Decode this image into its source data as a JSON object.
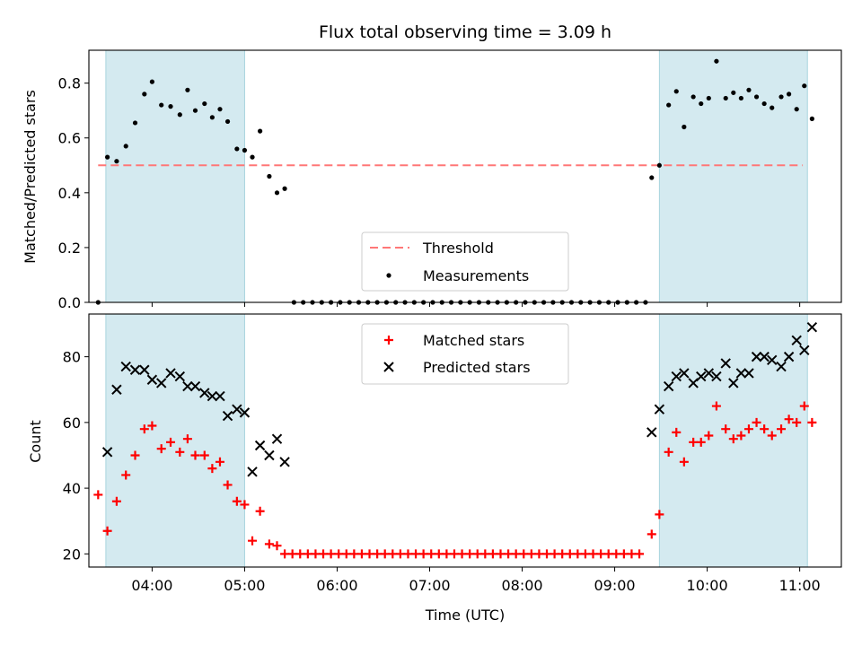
{
  "chart_data": [
    {
      "type": "scatter",
      "title": "Flux total observing time = 3.09 h",
      "ylabel": "Matched/Predicted stars",
      "xlabel": "",
      "xlim": [
        "03:19",
        "11:27"
      ],
      "ylim": [
        0,
        0.92
      ],
      "yticks": [
        "0.0",
        "0.2",
        "0.4",
        "0.6",
        "0.8"
      ],
      "grid": false,
      "legend_position": "lower-center",
      "shaded_intervals": [
        [
          "03:30",
          "05:00"
        ],
        [
          "09:29",
          "11:05"
        ]
      ],
      "shade_color": "#d4eaf0",
      "threshold": {
        "name": "Threshold",
        "value": 0.5,
        "x_range": [
          "03:25",
          "11:02"
        ],
        "color": "#ff7777"
      },
      "series": [
        {
          "name": "Measurements",
          "color": "#000000",
          "points": [
            [
              "03:25",
              0.0
            ],
            [
              "03:31",
              0.53
            ],
            [
              "03:37",
              0.515
            ],
            [
              "03:43",
              0.57
            ],
            [
              "03:49",
              0.655
            ],
            [
              "03:55",
              0.76
            ],
            [
              "04:00",
              0.805
            ],
            [
              "04:06",
              0.72
            ],
            [
              "04:12",
              0.715
            ],
            [
              "04:18",
              0.685
            ],
            [
              "04:23",
              0.775
            ],
            [
              "04:28",
              0.7
            ],
            [
              "04:34",
              0.725
            ],
            [
              "04:39",
              0.675
            ],
            [
              "04:44",
              0.705
            ],
            [
              "04:49",
              0.66
            ],
            [
              "04:55",
              0.56
            ],
            [
              "05:00",
              0.555
            ],
            [
              "05:05",
              0.53
            ],
            [
              "05:10",
              0.625
            ],
            [
              "05:16",
              0.46
            ],
            [
              "05:21",
              0.4
            ],
            [
              "05:26",
              0.415
            ],
            [
              "05:32",
              0.0
            ],
            [
              "05:38",
              0.0
            ],
            [
              "05:44",
              0.0
            ],
            [
              "05:50",
              0.0
            ],
            [
              "05:56",
              0.0
            ],
            [
              "06:02",
              0.0
            ],
            [
              "06:08",
              0.0
            ],
            [
              "06:14",
              0.0
            ],
            [
              "06:20",
              0.0
            ],
            [
              "06:26",
              0.0
            ],
            [
              "06:32",
              0.0
            ],
            [
              "06:38",
              0.0
            ],
            [
              "06:44",
              0.0
            ],
            [
              "06:50",
              0.0
            ],
            [
              "06:56",
              0.0
            ],
            [
              "07:02",
              0.0
            ],
            [
              "07:08",
              0.0
            ],
            [
              "07:14",
              0.0
            ],
            [
              "07:20",
              0.0
            ],
            [
              "07:26",
              0.0
            ],
            [
              "07:32",
              0.0
            ],
            [
              "07:38",
              0.0
            ],
            [
              "07:44",
              0.0
            ],
            [
              "07:50",
              0.0
            ],
            [
              "07:56",
              0.0
            ],
            [
              "08:02",
              0.0
            ],
            [
              "08:08",
              0.0
            ],
            [
              "08:14",
              0.0
            ],
            [
              "08:20",
              0.0
            ],
            [
              "08:26",
              0.0
            ],
            [
              "08:32",
              0.0
            ],
            [
              "08:38",
              0.0
            ],
            [
              "08:44",
              0.0
            ],
            [
              "08:50",
              0.0
            ],
            [
              "08:56",
              0.0
            ],
            [
              "09:02",
              0.0
            ],
            [
              "09:08",
              0.0
            ],
            [
              "09:14",
              0.0
            ],
            [
              "09:20",
              0.0
            ],
            [
              "09:24",
              0.455
            ],
            [
              "09:29",
              0.5
            ],
            [
              "09:35",
              0.72
            ],
            [
              "09:40",
              0.77
            ],
            [
              "09:45",
              0.64
            ],
            [
              "09:51",
              0.75
            ],
            [
              "09:56",
              0.725
            ],
            [
              "10:01",
              0.745
            ],
            [
              "10:06",
              0.88
            ],
            [
              "10:12",
              0.745
            ],
            [
              "10:17",
              0.765
            ],
            [
              "10:22",
              0.745
            ],
            [
              "10:27",
              0.775
            ],
            [
              "10:32",
              0.75
            ],
            [
              "10:37",
              0.725
            ],
            [
              "10:42",
              0.71
            ],
            [
              "10:48",
              0.75
            ],
            [
              "10:53",
              0.76
            ],
            [
              "10:58",
              0.705
            ],
            [
              "11:03",
              0.79
            ],
            [
              "11:08",
              0.67
            ]
          ]
        }
      ]
    },
    {
      "type": "scatter",
      "title": "",
      "ylabel": "Count",
      "xlabel": "Time (UTC)",
      "xlim": [
        "03:19",
        "11:27"
      ],
      "ylim": [
        16,
        93
      ],
      "yticks": [
        "20",
        "40",
        "60",
        "80"
      ],
      "xticks": [
        "04:00",
        "05:00",
        "06:00",
        "07:00",
        "08:00",
        "09:00",
        "10:00",
        "11:00"
      ],
      "grid": false,
      "legend_position": "upper-center",
      "shaded_intervals": [
        [
          "03:30",
          "05:00"
        ],
        [
          "09:29",
          "11:05"
        ]
      ],
      "shade_color": "#d4eaf0",
      "series": [
        {
          "name": "Matched stars",
          "marker": "plus",
          "color": "#ff0000",
          "points": [
            [
              "03:25",
              38
            ],
            [
              "03:31",
              27
            ],
            [
              "03:37",
              36
            ],
            [
              "03:43",
              44
            ],
            [
              "03:49",
              50
            ],
            [
              "03:55",
              58
            ],
            [
              "04:00",
              59
            ],
            [
              "04:06",
              52
            ],
            [
              "04:12",
              54
            ],
            [
              "04:18",
              51
            ],
            [
              "04:23",
              55
            ],
            [
              "04:28",
              50
            ],
            [
              "04:34",
              50
            ],
            [
              "04:39",
              46
            ],
            [
              "04:44",
              48
            ],
            [
              "04:49",
              41
            ],
            [
              "04:55",
              36
            ],
            [
              "05:00",
              35
            ],
            [
              "05:05",
              24
            ],
            [
              "05:10",
              33
            ],
            [
              "05:16",
              23
            ],
            [
              "05:21",
              22.5
            ],
            [
              "05:26",
              20
            ],
            [
              "05:31",
              20
            ],
            [
              "05:36",
              20
            ],
            [
              "05:41",
              20
            ],
            [
              "05:46",
              20
            ],
            [
              "05:51",
              20
            ],
            [
              "05:56",
              20
            ],
            [
              "06:01",
              20
            ],
            [
              "06:06",
              20
            ],
            [
              "06:11",
              20
            ],
            [
              "06:16",
              20
            ],
            [
              "06:21",
              20
            ],
            [
              "06:26",
              20
            ],
            [
              "06:31",
              20
            ],
            [
              "06:36",
              20
            ],
            [
              "06:41",
              20
            ],
            [
              "06:46",
              20
            ],
            [
              "06:51",
              20
            ],
            [
              "06:56",
              20
            ],
            [
              "07:01",
              20
            ],
            [
              "07:06",
              20
            ],
            [
              "07:11",
              20
            ],
            [
              "07:16",
              20
            ],
            [
              "07:21",
              20
            ],
            [
              "07:26",
              20
            ],
            [
              "07:31",
              20
            ],
            [
              "07:36",
              20
            ],
            [
              "07:41",
              20
            ],
            [
              "07:46",
              20
            ],
            [
              "07:51",
              20
            ],
            [
              "07:56",
              20
            ],
            [
              "08:01",
              20
            ],
            [
              "08:06",
              20
            ],
            [
              "08:11",
              20
            ],
            [
              "08:16",
              20
            ],
            [
              "08:21",
              20
            ],
            [
              "08:26",
              20
            ],
            [
              "08:31",
              20
            ],
            [
              "08:36",
              20
            ],
            [
              "08:41",
              20
            ],
            [
              "08:46",
              20
            ],
            [
              "08:51",
              20
            ],
            [
              "08:56",
              20
            ],
            [
              "09:01",
              20
            ],
            [
              "09:06",
              20
            ],
            [
              "09:11",
              20
            ],
            [
              "09:16",
              20
            ],
            [
              "09:24",
              26
            ],
            [
              "09:29",
              32
            ],
            [
              "09:35",
              51
            ],
            [
              "09:40",
              57
            ],
            [
              "09:45",
              48
            ],
            [
              "09:51",
              54
            ],
            [
              "09:56",
              54
            ],
            [
              "10:01",
              56
            ],
            [
              "10:06",
              65
            ],
            [
              "10:12",
              58
            ],
            [
              "10:17",
              55
            ],
            [
              "10:22",
              56
            ],
            [
              "10:27",
              58
            ],
            [
              "10:32",
              60
            ],
            [
              "10:37",
              58
            ],
            [
              "10:42",
              56
            ],
            [
              "10:48",
              58
            ],
            [
              "10:53",
              61
            ],
            [
              "10:58",
              60
            ],
            [
              "11:03",
              65
            ],
            [
              "11:08",
              60
            ]
          ]
        },
        {
          "name": "Predicted stars",
          "marker": "x",
          "color": "#000000",
          "points": [
            [
              "03:31",
              51
            ],
            [
              "03:37",
              70
            ],
            [
              "03:43",
              77
            ],
            [
              "03:49",
              76
            ],
            [
              "03:55",
              76
            ],
            [
              "04:00",
              73
            ],
            [
              "04:06",
              72
            ],
            [
              "04:12",
              75
            ],
            [
              "04:18",
              74
            ],
            [
              "04:23",
              71
            ],
            [
              "04:28",
              71
            ],
            [
              "04:34",
              69
            ],
            [
              "04:39",
              68
            ],
            [
              "04:44",
              68
            ],
            [
              "04:49",
              62
            ],
            [
              "04:55",
              64
            ],
            [
              "05:00",
              63
            ],
            [
              "05:05",
              45
            ],
            [
              "05:10",
              53
            ],
            [
              "05:16",
              50
            ],
            [
              "05:21",
              55
            ],
            [
              "05:26",
              48
            ],
            [
              "09:24",
              57
            ],
            [
              "09:29",
              64
            ],
            [
              "09:35",
              71
            ],
            [
              "09:40",
              74
            ],
            [
              "09:45",
              75
            ],
            [
              "09:51",
              72
            ],
            [
              "09:56",
              74
            ],
            [
              "10:01",
              75
            ],
            [
              "10:06",
              74
            ],
            [
              "10:12",
              78
            ],
            [
              "10:17",
              72
            ],
            [
              "10:22",
              75
            ],
            [
              "10:27",
              75
            ],
            [
              "10:32",
              80
            ],
            [
              "10:37",
              80
            ],
            [
              "10:42",
              79
            ],
            [
              "10:48",
              77
            ],
            [
              "10:53",
              80
            ],
            [
              "10:58",
              85
            ],
            [
              "11:03",
              82
            ],
            [
              "11:08",
              89
            ]
          ]
        }
      ]
    }
  ]
}
